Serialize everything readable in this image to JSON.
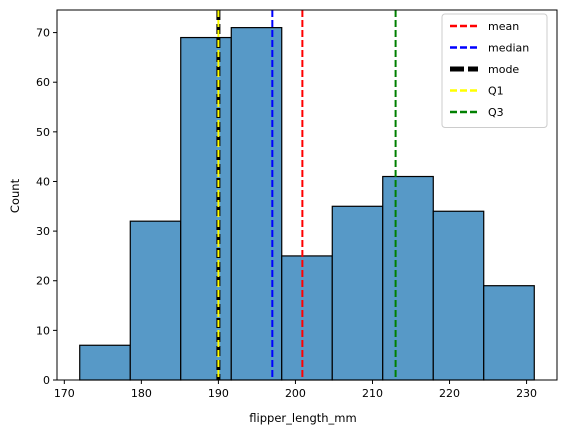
{
  "chart_data": {
    "type": "histogram",
    "xlabel": "flipper_length_mm",
    "ylabel": "Count",
    "xlim": [
      169.05,
      233.95
    ],
    "ylim": [
      0,
      74.55
    ],
    "xticks": [
      170,
      180,
      190,
      200,
      210,
      220,
      230
    ],
    "yticks": [
      0,
      10,
      20,
      30,
      40,
      50,
      60,
      70
    ],
    "bar_color": "#5799c7",
    "bins": [
      {
        "x0": 172.0,
        "x1": 178.56,
        "count": 7
      },
      {
        "x0": 178.56,
        "x1": 185.11,
        "count": 32
      },
      {
        "x0": 185.11,
        "x1": 191.67,
        "count": 69
      },
      {
        "x0": 191.67,
        "x1": 198.22,
        "count": 71
      },
      {
        "x0": 198.22,
        "x1": 204.78,
        "count": 25
      },
      {
        "x0": 204.78,
        "x1": 211.33,
        "count": 35
      },
      {
        "x0": 211.33,
        "x1": 217.89,
        "count": 41
      },
      {
        "x0": 217.89,
        "x1": 224.44,
        "count": 34
      },
      {
        "x0": 224.44,
        "x1": 231.0,
        "count": 19
      }
    ],
    "vlines": [
      {
        "name": "mean",
        "x": 200.9,
        "color": "#ff0000",
        "style": "dashed",
        "width": 2
      },
      {
        "name": "median",
        "x": 197.0,
        "color": "#0000ff",
        "style": "dashed",
        "width": 2
      },
      {
        "name": "mode",
        "x": 190.0,
        "color": "#000000",
        "style": "dashed",
        "width": 4
      },
      {
        "name": "Q1",
        "x": 190.0,
        "color": "#ffff00",
        "style": "dashed",
        "width": 2
      },
      {
        "name": "Q3",
        "x": 213.0,
        "color": "#008000",
        "style": "dashed",
        "width": 2
      }
    ],
    "legend": {
      "position": "upper-right",
      "entries": [
        "mean",
        "median",
        "mode",
        "Q1",
        "Q3"
      ]
    },
    "grid": false
  }
}
